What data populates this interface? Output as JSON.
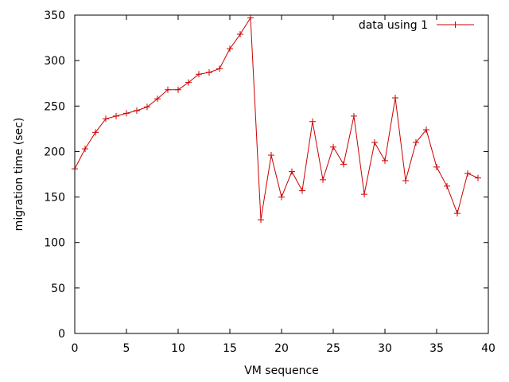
{
  "chart_data": {
    "type": "line",
    "xlabel": "VM sequence",
    "ylabel": "migration time (sec)",
    "xlim": [
      0,
      40
    ],
    "ylim": [
      0,
      350
    ],
    "x_ticks": [
      0,
      5,
      10,
      15,
      20,
      25,
      30,
      35,
      40
    ],
    "y_ticks": [
      0,
      50,
      100,
      150,
      200,
      250,
      300,
      350
    ],
    "grid": false,
    "legend_position": "top-right",
    "series": [
      {
        "name": "data using 1",
        "color": "#cc0000",
        "marker": "plus",
        "x": [
          0,
          1,
          2,
          3,
          4,
          5,
          6,
          7,
          8,
          9,
          10,
          11,
          12,
          13,
          14,
          15,
          16,
          17,
          18,
          19,
          20,
          21,
          22,
          23,
          24,
          25,
          26,
          27,
          28,
          29,
          30,
          31,
          32,
          33,
          34,
          35,
          36,
          37,
          38,
          39
        ],
        "values": [
          181,
          203,
          221,
          236,
          239,
          242,
          245,
          249,
          258,
          268,
          268,
          276,
          285,
          287,
          291,
          313,
          329,
          347,
          125,
          196,
          150,
          178,
          157,
          233,
          169,
          205,
          186,
          239,
          153,
          210,
          190,
          259,
          168,
          210,
          224,
          183,
          162,
          132,
          176,
          171
        ]
      }
    ]
  }
}
